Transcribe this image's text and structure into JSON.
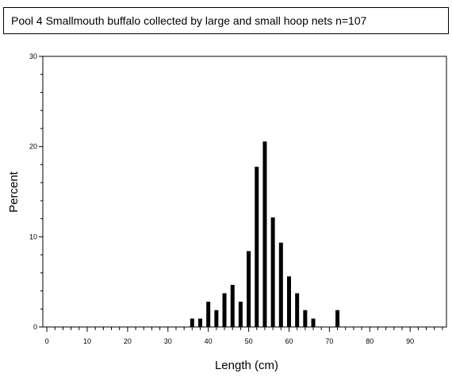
{
  "chart_data": {
    "type": "bar",
    "title": "Pool 4 Smallmouth buffalo collected by large and small hoop nets   n=107",
    "xlabel": "Length (cm)",
    "ylabel": "Percent",
    "xlim": [
      -1,
      99
    ],
    "ylim": [
      0,
      30
    ],
    "xticks": [
      0,
      10,
      20,
      30,
      40,
      50,
      60,
      70,
      80,
      90
    ],
    "yticks": [
      0,
      10,
      20,
      30
    ],
    "x": [
      36,
      38,
      40,
      42,
      44,
      46,
      48,
      50,
      52,
      54,
      56,
      58,
      60,
      62,
      64,
      66,
      72
    ],
    "values": [
      0.93,
      0.93,
      2.8,
      1.87,
      3.74,
      4.67,
      2.8,
      8.41,
      17.76,
      20.56,
      12.15,
      9.35,
      5.61,
      3.74,
      1.87,
      0.93,
      1.87
    ],
    "grid": false,
    "legend": "none"
  }
}
